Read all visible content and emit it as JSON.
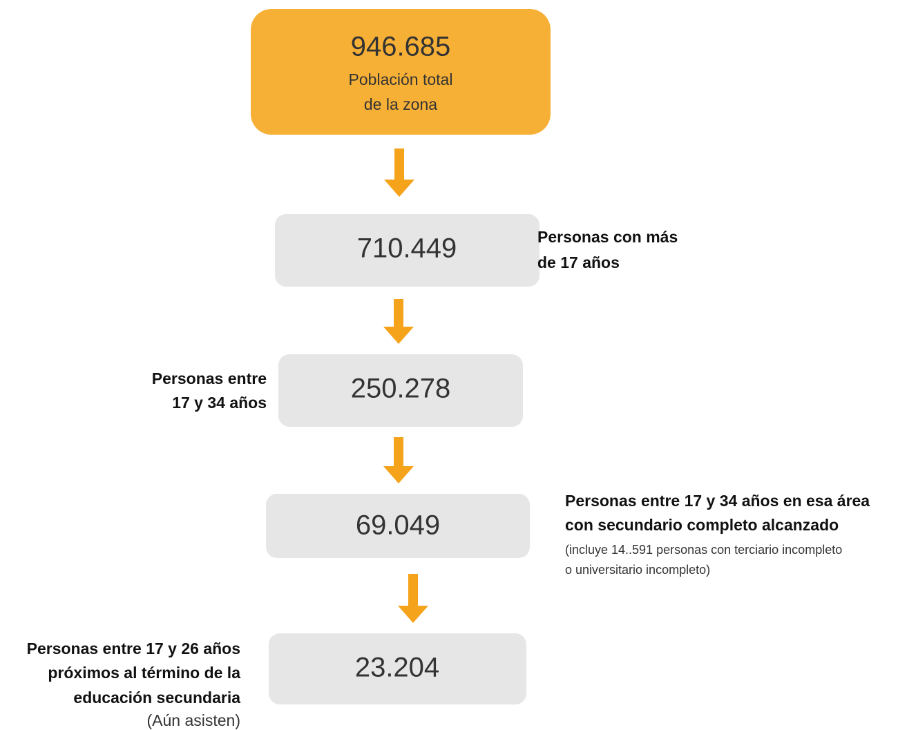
{
  "nodes": [
    {
      "value": "946.685",
      "label": [
        "Población total",
        "de la zona"
      ]
    },
    {
      "value": "710.449",
      "label": [
        "Personas con más",
        "de 17 años"
      ]
    },
    {
      "value": "250.278",
      "label": [
        "Personas entre",
        "17 y 34 años"
      ]
    },
    {
      "value": "69.049",
      "label": [
        "Personas entre 17 y 34 años en esa área",
        "con secundario completo alcanzado"
      ],
      "note": [
        "(incluye 14..591 personas con terciario incompleto",
        "o universitario incompleto)"
      ]
    },
    {
      "value": "23.204",
      "label": [
        "Personas entre 17 y 26 años",
        "próximos al término de la",
        "educación secundaria"
      ],
      "note": [
        "(Aún asisten)"
      ]
    }
  ]
}
